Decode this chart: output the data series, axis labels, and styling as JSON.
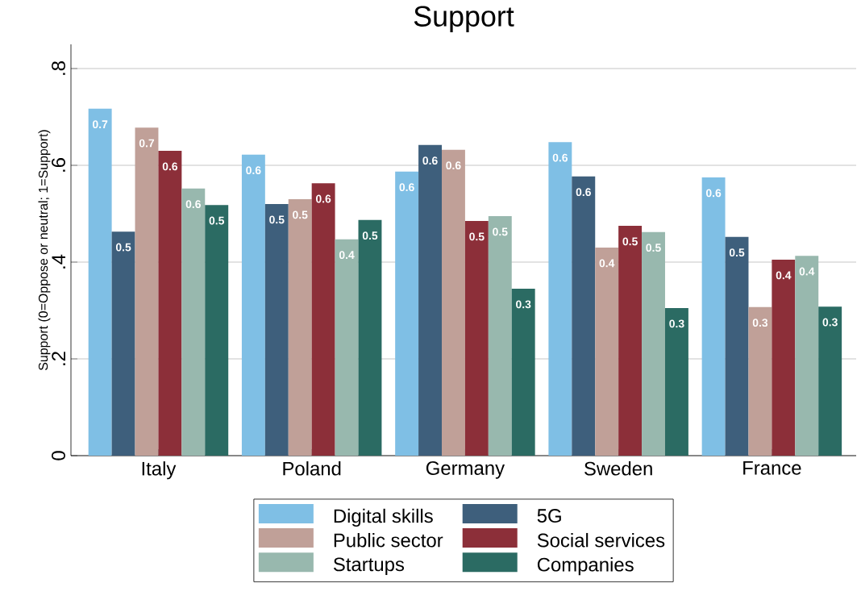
{
  "chart_data": {
    "type": "bar",
    "title": "Support",
    "ylabel": "Support (0=Oppose or neutral; 1=Support)",
    "categories": [
      "Italy",
      "Poland",
      "Germany",
      "Sweden",
      "France"
    ],
    "series": [
      {
        "name": "Digital skills",
        "color": "#7fbfe5",
        "values": [
          0.717,
          0.622,
          0.587,
          0.648,
          0.575
        ],
        "value_labels": [
          "0.7",
          "0.6",
          "0.6",
          "0.6",
          "0.6"
        ]
      },
      {
        "name": "5G",
        "color": "#3e5f7c",
        "values": [
          0.463,
          0.52,
          0.642,
          0.577,
          0.452
        ],
        "value_labels": [
          "0.5",
          "0.5",
          "0.6",
          "0.6",
          "0.5"
        ]
      },
      {
        "name": "Public sector",
        "color": "#c0a098",
        "values": [
          0.678,
          0.53,
          0.632,
          0.43,
          0.307
        ],
        "value_labels": [
          "0.7",
          "0.5",
          "0.6",
          "0.4",
          "0.3"
        ]
      },
      {
        "name": "Social services",
        "color": "#8c2f39",
        "values": [
          0.63,
          0.563,
          0.485,
          0.475,
          0.405
        ],
        "value_labels": [
          "0.6",
          "0.6",
          "0.5",
          "0.5",
          "0.4"
        ]
      },
      {
        "name": "Startups",
        "color": "#98b8ae",
        "values": [
          0.552,
          0.447,
          0.495,
          0.462,
          0.413
        ],
        "value_labels": [
          "0.6",
          "0.4",
          "0.5",
          "0.5",
          "0.4"
        ]
      },
      {
        "name": "Companies",
        "color": "#2b6b63",
        "values": [
          0.518,
          0.487,
          0.345,
          0.305,
          0.308
        ],
        "value_labels": [
          "0.5",
          "0.5",
          "0.3",
          "0.3",
          "0.3"
        ]
      }
    ],
    "ylim": [
      0,
      0.85
    ],
    "yticks": [
      {
        "value": 0,
        "label": "0"
      },
      {
        "value": 0.2,
        "label": ".2"
      },
      {
        "value": 0.4,
        "label": ".4"
      },
      {
        "value": 0.6,
        "label": ".6"
      },
      {
        "value": 0.8,
        "label": ".8"
      }
    ],
    "grid": "y",
    "legend": "bottom"
  }
}
